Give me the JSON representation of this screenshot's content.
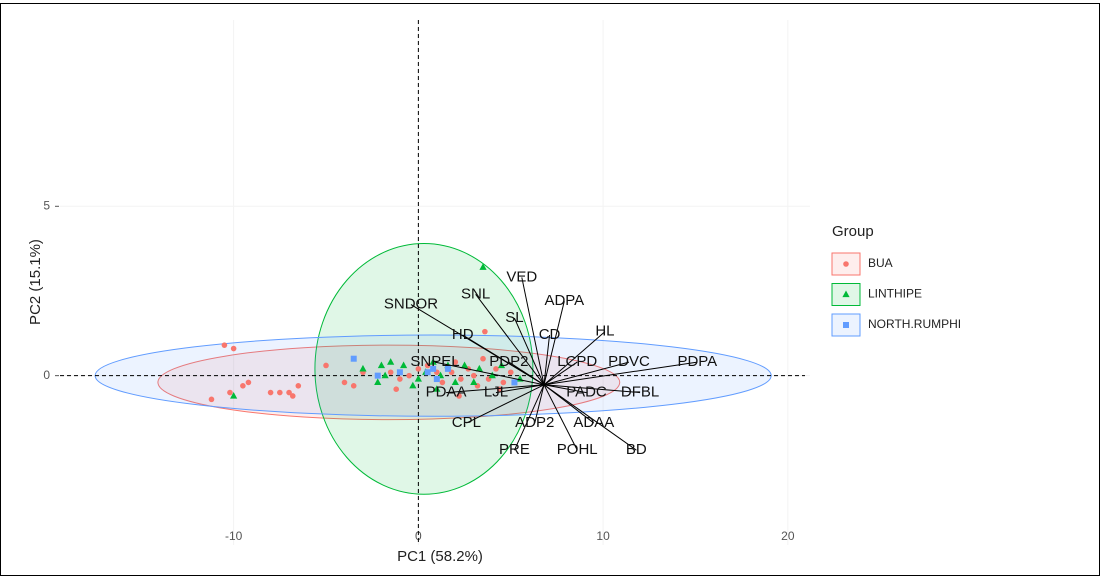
{
  "chart_data": {
    "type": "pca-biplot",
    "x_label": "PC1 (58.2%)",
    "y_label": "PC2 (15.1%)",
    "xlim": [
      -19.4,
      21.2
    ],
    "ylim": [
      -5.0,
      10.5
    ],
    "xticks": [
      -10,
      0,
      10,
      20
    ],
    "yticks": [
      0,
      5
    ],
    "grid": true,
    "legend_title": "Group",
    "legend_position": "right",
    "arrow_origin": {
      "x": 6.8,
      "y": -0.27
    },
    "series": [
      {
        "name": "BUA",
        "color": "#F8766D",
        "shape": "circle",
        "x": [
          -10.5,
          -10,
          -11.2,
          -10.2,
          -9.5,
          -9.2,
          -8,
          -7.5,
          -7,
          -6.5,
          -6.8,
          -5,
          -4,
          -3.5,
          -3,
          -1.5,
          -1,
          -0.5,
          0,
          0.5,
          1,
          1.3,
          1.8,
          2,
          2.3,
          2.7,
          3,
          3.2,
          3.5,
          3.8,
          4.2,
          4.6,
          5,
          3.6,
          2.2,
          -1.2,
          4.4
        ],
        "values": [
          0.9,
          0.8,
          -0.7,
          -0.5,
          -0.3,
          -0.2,
          -0.5,
          -0.5,
          -0.5,
          -0.3,
          -0.6,
          0.3,
          -0.2,
          -0.3,
          0.1,
          0.1,
          -0.1,
          0,
          0.2,
          0.3,
          0.1,
          -0.2,
          0.1,
          0.4,
          -0.1,
          0.2,
          0,
          -0.3,
          0.5,
          -0.1,
          0.2,
          -0.2,
          0.1,
          1.3,
          -0.6,
          -0.4,
          -0.4
        ],
        "ellipse": {
          "cx": -1.6,
          "cy": -0.2,
          "rx": 12.5,
          "ry": 1.1
        }
      },
      {
        "name": "LINTHIPE",
        "color": "#00BA38",
        "shape": "triangle",
        "x": [
          3.5,
          -10,
          -3,
          -2,
          -1.8,
          -2.2,
          -1.5,
          -0.8,
          0,
          0.4,
          0.8,
          1.2,
          1.6,
          2,
          2.5,
          3,
          3.3,
          4,
          4.5,
          5.5,
          -0.3,
          1
        ],
        "values": [
          3.2,
          -0.6,
          0.2,
          0.3,
          0,
          -0.2,
          0.4,
          0.3,
          -0.1,
          0.1,
          0.4,
          0,
          0.3,
          -0.2,
          0.3,
          -0.2,
          0.2,
          0,
          0.3,
          -0.1,
          -0.3,
          -0.4
        ],
        "ellipse": {
          "cx": 0.3,
          "cy": 0.2,
          "rx": 5.9,
          "ry": 3.7
        }
      },
      {
        "name": "NORTH.RUMPHI",
        "color": "#619CFF",
        "shape": "square",
        "x": [
          -3.5,
          -2.2,
          0.5,
          0.8,
          1.0,
          5.2,
          1.6,
          -1
        ],
        "values": [
          0.5,
          0,
          0.1,
          0.2,
          -0.1,
          -0.2,
          0.2,
          0.1
        ],
        "ellipse": {
          "cx": 0.8,
          "cy": 0.0,
          "rx": 18.3,
          "ry": 1.2
        }
      }
    ],
    "variables": [
      {
        "name": "VED",
        "x": 5.6,
        "y": 2.9
      },
      {
        "name": "SNL",
        "x": 3.1,
        "y": 2.4
      },
      {
        "name": "ADPA",
        "x": 7.9,
        "y": 2.2
      },
      {
        "name": "SNDOR",
        "x": -0.4,
        "y": 2.1
      },
      {
        "name": "SL",
        "x": 5.2,
        "y": 1.7
      },
      {
        "name": "HD",
        "x": 2.4,
        "y": 1.2
      },
      {
        "name": "CD",
        "x": 7.1,
        "y": 1.2
      },
      {
        "name": "HL",
        "x": 10.1,
        "y": 1.3
      },
      {
        "name": "SNPEL",
        "x": 0.9,
        "y": 0.4
      },
      {
        "name": "PDP2",
        "x": 4.9,
        "y": 0.4
      },
      {
        "name": "LCPD",
        "x": 8.6,
        "y": 0.4
      },
      {
        "name": "PDVC",
        "x": 11.4,
        "y": 0.4
      },
      {
        "name": "PDPA",
        "x": 15.1,
        "y": 0.4
      },
      {
        "name": "PDAA",
        "x": 1.5,
        "y": -0.5
      },
      {
        "name": "LJL",
        "x": 4.2,
        "y": -0.5
      },
      {
        "name": "PADC",
        "x": 9.1,
        "y": -0.5
      },
      {
        "name": "DFBL",
        "x": 12.0,
        "y": -0.5
      },
      {
        "name": "CPL",
        "x": 2.6,
        "y": -1.4
      },
      {
        "name": "ADP2",
        "x": 6.3,
        "y": -1.4
      },
      {
        "name": "ADAA",
        "x": 9.5,
        "y": -1.4
      },
      {
        "name": "PRE",
        "x": 5.2,
        "y": -2.2
      },
      {
        "name": "POHL",
        "x": 8.6,
        "y": -2.2
      },
      {
        "name": "BD",
        "x": 11.8,
        "y": -2.2
      }
    ]
  }
}
